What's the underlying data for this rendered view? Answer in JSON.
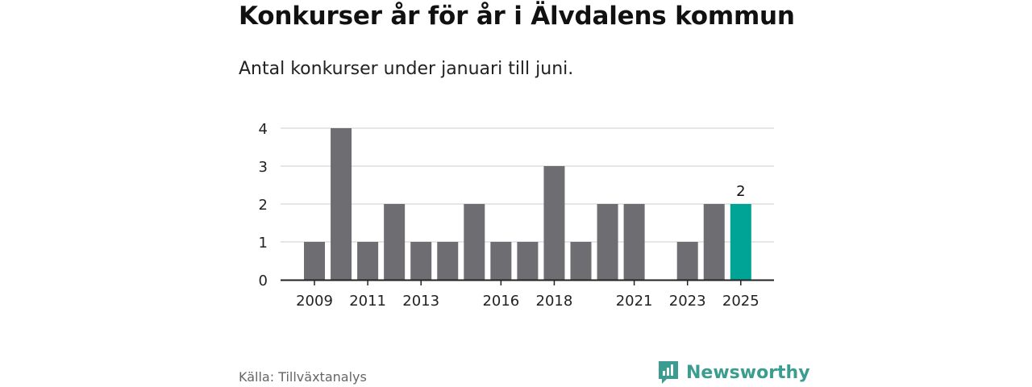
{
  "header": {
    "title": "Konkurser år för år i Älvdalens kommun",
    "subtitle": "Antal konkurser under januari till juni."
  },
  "footer": {
    "source": "Källa: Tillväxtanalys",
    "brand": "Newsworthy",
    "brand_icon": "newsworthy-logo-icon"
  },
  "colors": {
    "bar": "#6e6d72",
    "highlight": "#00a496",
    "grid": "#dddddd",
    "axis": "#222222",
    "brand": "#3a9d8f"
  },
  "chart_data": {
    "type": "bar",
    "categories": [
      "2009",
      "2010",
      "2011",
      "2012",
      "2013",
      "2014",
      "2015",
      "2016",
      "2017",
      "2018",
      "2019",
      "2020",
      "2021",
      "2022",
      "2023",
      "2024",
      "2025"
    ],
    "values": [
      1,
      4,
      1,
      2,
      1,
      1,
      2,
      1,
      1,
      3,
      1,
      2,
      2,
      0,
      1,
      2,
      2
    ],
    "x_tick_labels": [
      "2009",
      "2011",
      "2013",
      "2016",
      "2018",
      "2021",
      "2023",
      "2025"
    ],
    "y_ticks": [
      0,
      1,
      2,
      3,
      4
    ],
    "ylim": [
      0,
      4
    ],
    "highlight_category": "2025",
    "data_labels": [
      {
        "category": "2025",
        "text": "2"
      }
    ],
    "grid": true,
    "xlabel": "",
    "ylabel": ""
  }
}
